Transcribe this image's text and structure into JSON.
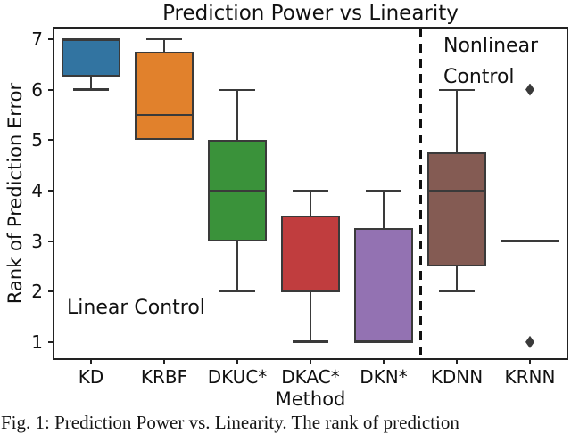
{
  "figure": {
    "caption": "Fig. 1: Prediction Power vs. Linearity. The rank of prediction"
  },
  "chart_data": {
    "type": "boxplot",
    "title": "Prediction Power vs Linearity",
    "xlabel": "Method",
    "ylabel": "Rank of Prediction Error",
    "categories": [
      "KD",
      "KRBF",
      "DKUC*",
      "DKAC*",
      "DKN*",
      "KDNN",
      "KRNN"
    ],
    "yticks": [
      1,
      2,
      3,
      4,
      5,
      6,
      7
    ],
    "ylim": [
      0.68,
      7.21
    ],
    "grid": false,
    "legend": "none",
    "line_color": "#3a3a3a",
    "spine_color": "#222222",
    "series": [
      {
        "category": "KD",
        "color": "#3274a1",
        "whisker_low": 6,
        "q1": 6.25,
        "median": 7,
        "q3": 7,
        "whisker_high": 7,
        "outliers": []
      },
      {
        "category": "KRBF",
        "color": "#e1812c",
        "whisker_low": 5,
        "q1": 5,
        "median": 5.5,
        "q3": 6.75,
        "whisker_high": 7,
        "outliers": []
      },
      {
        "category": "DKUC*",
        "color": "#3a923a",
        "whisker_low": 2,
        "q1": 3,
        "median": 4,
        "q3": 5,
        "whisker_high": 6,
        "outliers": []
      },
      {
        "category": "DKAC*",
        "color": "#c03d3e",
        "whisker_low": 1,
        "q1": 2,
        "median": 2,
        "q3": 3.5,
        "whisker_high": 4,
        "outliers": []
      },
      {
        "category": "DKN*",
        "color": "#9372b2",
        "whisker_low": 1,
        "q1": 1,
        "median": 1,
        "q3": 3.25,
        "whisker_high": 4,
        "outliers": []
      },
      {
        "category": "KDNN",
        "color": "#845b53",
        "whisker_low": 2,
        "q1": 2.5,
        "median": 4,
        "q3": 4.75,
        "whisker_high": 6,
        "outliers": []
      },
      {
        "category": "KRNN",
        "color": "#d684bd",
        "whisker_low": 3,
        "q1": 3,
        "median": 3,
        "q3": 3,
        "whisker_high": 3,
        "outliers": [
          6,
          1
        ]
      }
    ],
    "separator": {
      "style": "dashed",
      "color": "#111111",
      "between": [
        "DKN*",
        "KDNN"
      ]
    },
    "annotations": [
      {
        "text": "Linear Control",
        "region": "bottom-left"
      },
      {
        "text": "Nonlinear Control",
        "region": "top-right"
      }
    ]
  }
}
